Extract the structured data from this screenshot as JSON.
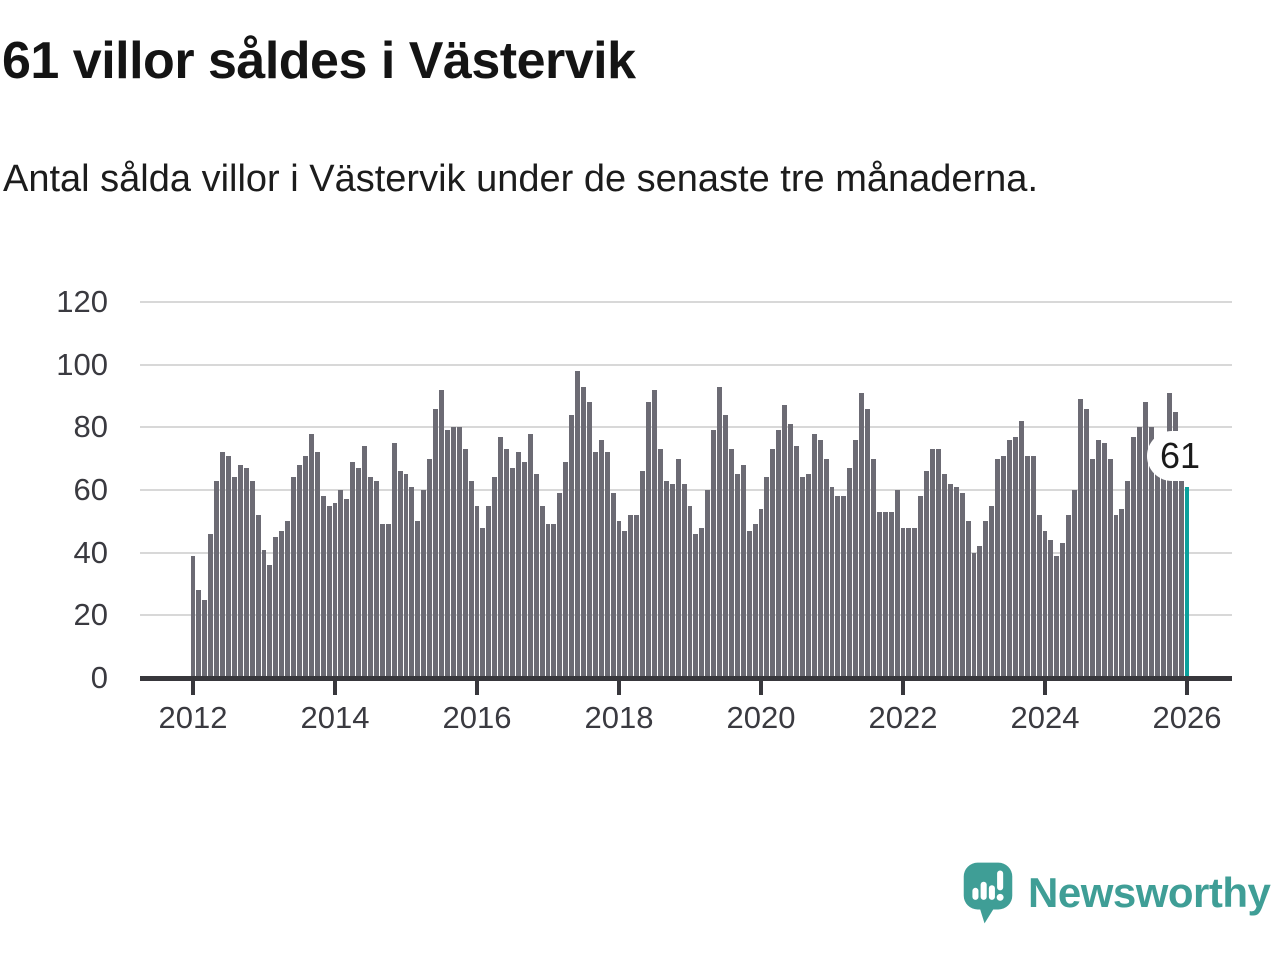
{
  "header": {
    "title": "61 villor såldes i Västervik",
    "subtitle": "Antal sålda villor i Västervik under de senaste tre månaderna."
  },
  "chart_data": {
    "type": "bar",
    "title": "61 villor såldes i Västervik",
    "frequency": "monthly",
    "x_start": "2012-01",
    "x_end": "2026-01",
    "x_tick_labels": [
      "2012",
      "2014",
      "2016",
      "2018",
      "2020",
      "2022",
      "2024",
      "2026"
    ],
    "months_per_x_tick": 24,
    "yticks": [
      0,
      20,
      40,
      60,
      80,
      100,
      120
    ],
    "ylim": [
      0,
      120
    ],
    "grid": true,
    "bar_color": "#6c6b74",
    "values": [
      39,
      28,
      25,
      46,
      63,
      72,
      71,
      64,
      68,
      67,
      63,
      52,
      41,
      36,
      45,
      47,
      50,
      64,
      68,
      71,
      78,
      72,
      58,
      55,
      56,
      60,
      57,
      69,
      67,
      74,
      64,
      63,
      49,
      49,
      75,
      66,
      65,
      61,
      50,
      60,
      70,
      86,
      92,
      79,
      80,
      80,
      73,
      63,
      55,
      48,
      55,
      64,
      77,
      73,
      67,
      72,
      69,
      78,
      65,
      55,
      49,
      49,
      59,
      69,
      84,
      98,
      93,
      88,
      72,
      76,
      72,
      59,
      50,
      47,
      52,
      52,
      66,
      88,
      92,
      73,
      63,
      62,
      70,
      62,
      55,
      46,
      48,
      60,
      79,
      93,
      84,
      73,
      65,
      68,
      47,
      49,
      54,
      64,
      73,
      79,
      87,
      81,
      74,
      64,
      65,
      78,
      76,
      70,
      61,
      58,
      58,
      67,
      76,
      91,
      86,
      70,
      53,
      53,
      53,
      60,
      48,
      48,
      48,
      58,
      66,
      73,
      73,
      65,
      62,
      61,
      59,
      50,
      40,
      42,
      50,
      55,
      70,
      71,
      76,
      77,
      82,
      71,
      71,
      52,
      47,
      44,
      39,
      43,
      52,
      60,
      89,
      86,
      70,
      76,
      75,
      70,
      52,
      54,
      63,
      77,
      80,
      88,
      80,
      75,
      76,
      91,
      85,
      77,
      61
    ],
    "highlight": {
      "index": 168,
      "value": 61,
      "label": "61",
      "color": "#0ba09c"
    },
    "grid_color": "#d8d8d8",
    "axis_color": "#38373c"
  },
  "footer": {
    "brand": "Newsworthy",
    "brand_color": "#3f9e96"
  }
}
